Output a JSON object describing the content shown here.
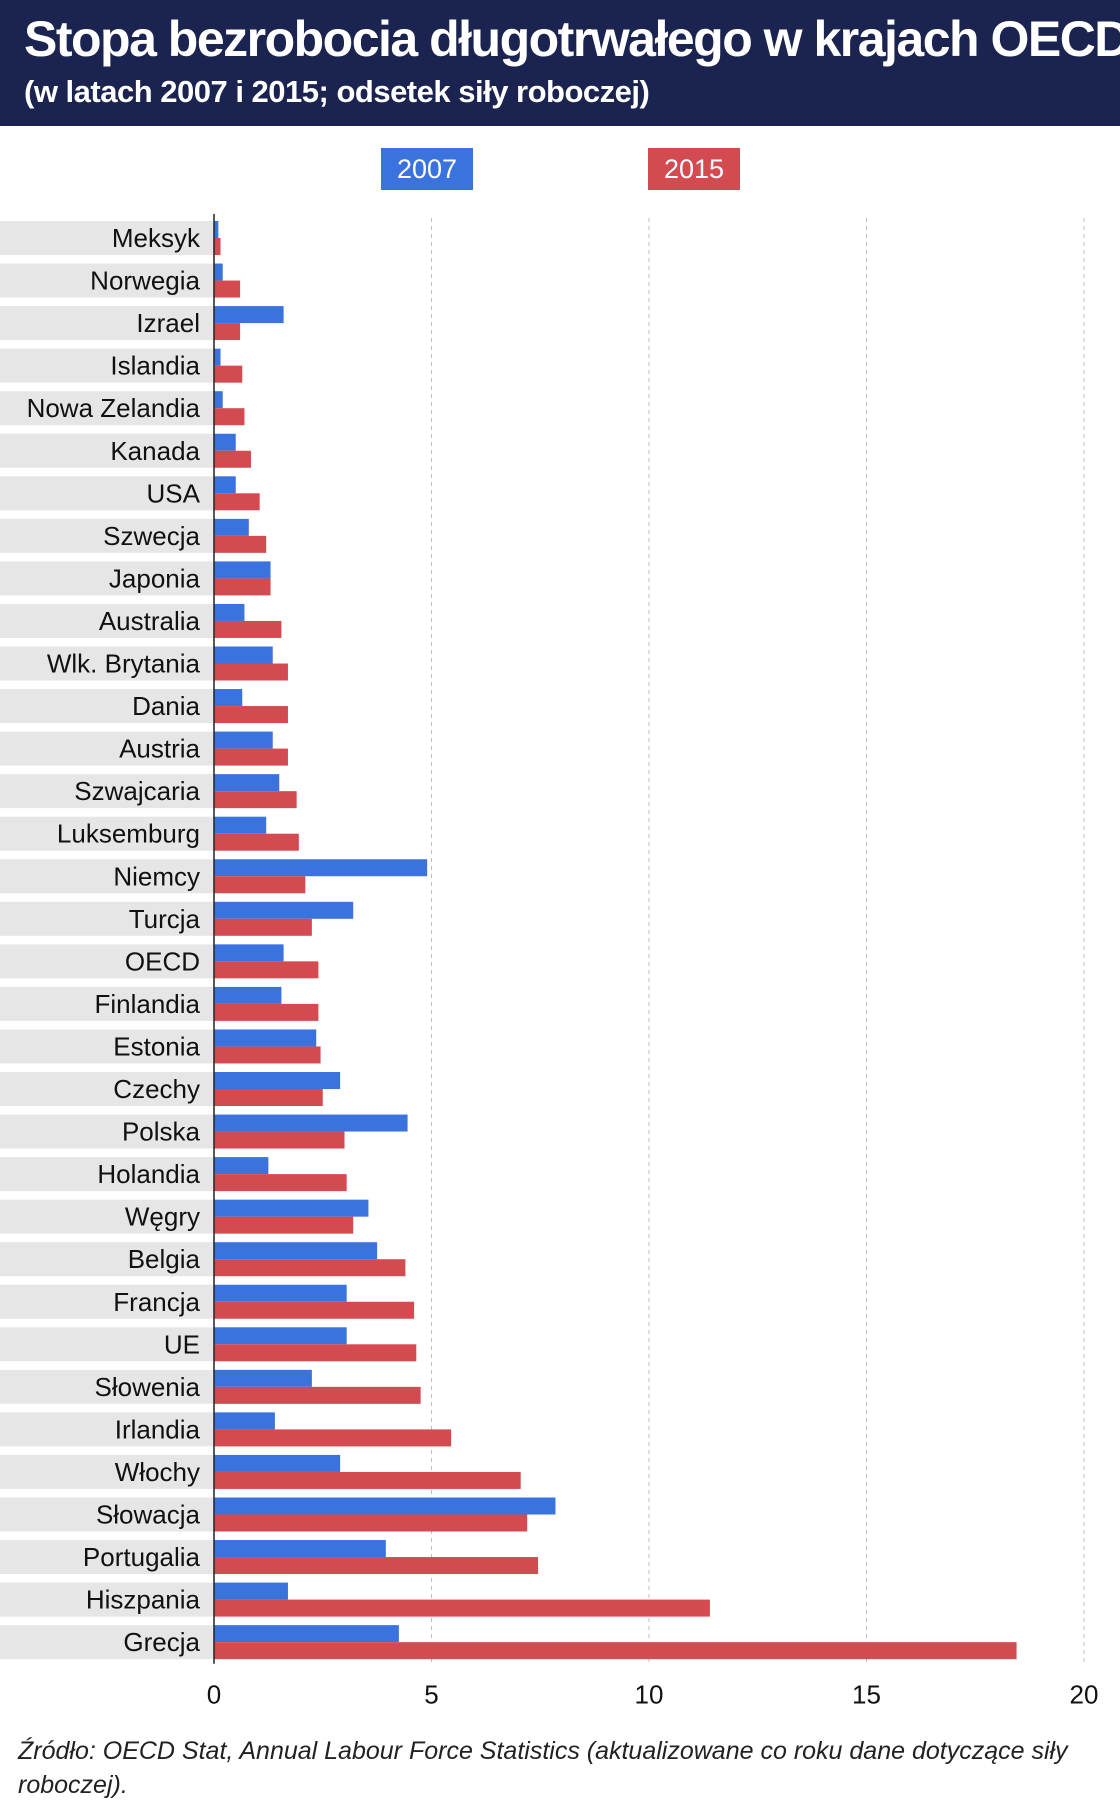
{
  "header": {
    "title": "Stopa bezrobocia długotrwałego w krajach OECD",
    "subtitle": "(w latach 2007 i 2015; odsetek siły roboczej)"
  },
  "source": "Źródło: OECD Stat, Annual Labour Force Statistics (aktualizowane co roku dane dotyczące siły roboczej).",
  "colors": {
    "s2007": "#3a72de",
    "s2015": "#d44a51",
    "band": "#e6e6e6",
    "header": "#1b2350"
  },
  "chart_data": {
    "type": "bar",
    "orientation": "horizontal",
    "title": "Stopa bezrobocia długotrwałego w krajach OECD",
    "subtitle": "(w latach 2007 i 2015; odsetek siły roboczej)",
    "categories": [
      "Meksyk",
      "Norwegia",
      "Izrael",
      "Islandia",
      "Nowa Zelandia",
      "Kanada",
      "USA",
      "Szwecja",
      "Japonia",
      "Australia",
      "Wlk. Brytania",
      "Dania",
      "Austria",
      "Szwajcaria",
      "Luksemburg",
      "Niemcy",
      "Turcja",
      "OECD",
      "Finlandia",
      "Estonia",
      "Czechy",
      "Polska",
      "Holandia",
      "Węgry",
      "Belgia",
      "Francja",
      "UE",
      "Słowenia",
      "Irlandia",
      "Włochy",
      "Słowacja",
      "Portugalia",
      "Hiszpania",
      "Grecja"
    ],
    "series": [
      {
        "name": "2007",
        "values": [
          0.1,
          0.2,
          1.6,
          0.15,
          0.2,
          0.5,
          0.5,
          0.8,
          1.3,
          0.7,
          1.35,
          0.65,
          1.35,
          1.5,
          1.2,
          4.9,
          3.2,
          1.6,
          1.55,
          2.35,
          2.9,
          4.45,
          1.25,
          3.55,
          3.75,
          3.05,
          3.05,
          2.25,
          1.4,
          2.9,
          7.85,
          3.95,
          1.7,
          4.25
        ]
      },
      {
        "name": "2015",
        "values": [
          0.15,
          0.6,
          0.6,
          0.65,
          0.7,
          0.85,
          1.05,
          1.2,
          1.3,
          1.55,
          1.7,
          1.7,
          1.7,
          1.9,
          1.95,
          2.1,
          2.25,
          2.4,
          2.4,
          2.45,
          2.5,
          3.0,
          3.05,
          3.2,
          4.4,
          4.6,
          4.65,
          4.75,
          5.45,
          7.05,
          7.2,
          7.45,
          11.4,
          18.45
        ]
      }
    ],
    "xticks": [
      0,
      5,
      10,
      15,
      20
    ],
    "xlim": [
      0,
      20
    ],
    "grid": "vertical-dashed",
    "legend": "top"
  }
}
